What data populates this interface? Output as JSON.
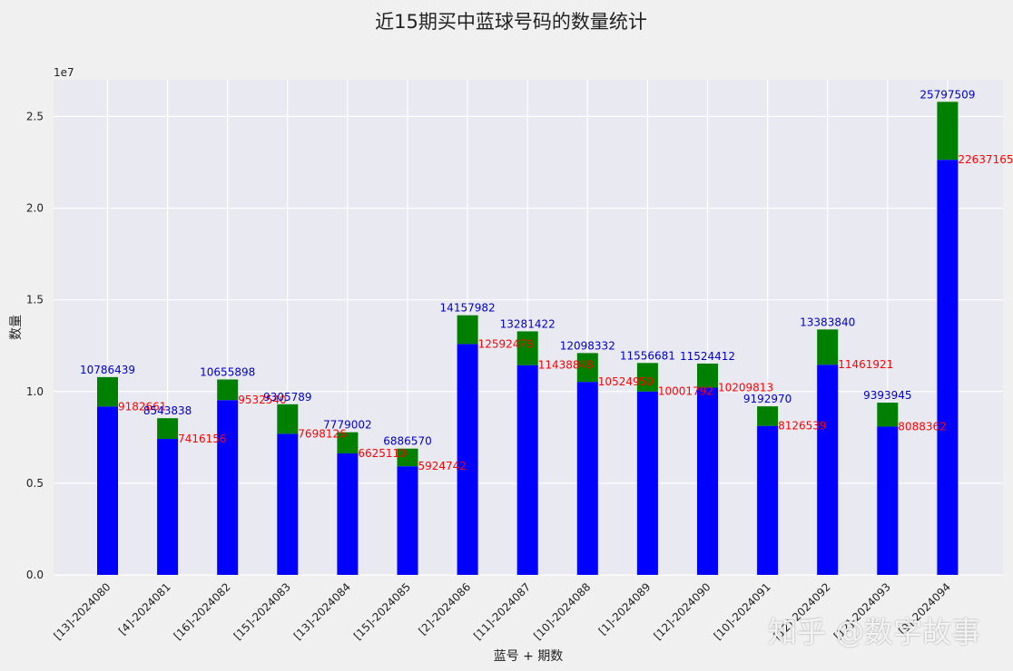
{
  "chart_data": {
    "type": "bar",
    "title": "近15期买中蓝球号码的数量统计",
    "xlabel": "蓝号 + 期数",
    "ylabel": "数量",
    "y_offset_label": "1e7",
    "ylim": [
      0,
      27000000
    ],
    "yticks": [
      0,
      5000000,
      10000000,
      15000000,
      20000000,
      25000000
    ],
    "ytick_labels": [
      "0.0",
      "0.5",
      "1.0",
      "1.5",
      "2.0",
      "2.5"
    ],
    "grid": true,
    "categories": [
      "[13]-2024080",
      "[4]-2024081",
      "[16]-2024082",
      "[15]-2024083",
      "[13]-2024084",
      "[15]-2024085",
      "[2]-2024086",
      "[11]-2024087",
      "[10]-2024088",
      "[1]-2024089",
      "[12]-2024090",
      "[10]-2024091",
      "[12]-2024092",
      "[12]-2024093",
      "[9]-2024094"
    ],
    "series": [
      {
        "color": "#0000ff",
        "label_color": "#ff0000",
        "values": [
          9182661,
          7416156,
          9532540,
          7698126,
          6625110,
          5924742,
          12592478,
          11438848,
          10524950,
          10001792,
          10209813,
          8126539,
          11461921,
          8088362,
          22637165
        ]
      },
      {
        "color": "#008000",
        "label_color": "#0000cc",
        "values": [
          10786439,
          8543838,
          10655898,
          9305789,
          7779002,
          6886570,
          14157982,
          13281422,
          12098332,
          11556681,
          11524412,
          9192970,
          13383840,
          9393945,
          25797509
        ]
      }
    ]
  },
  "watermark": "知乎 @数字故事"
}
